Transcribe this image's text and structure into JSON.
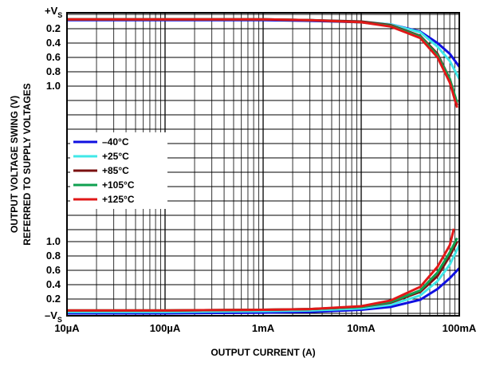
{
  "chart_data": {
    "type": "line",
    "xlabel": "OUTPUT CURRENT (A)",
    "ylabel_line1": "OUTPUT VOLTAGE SWING (V)",
    "ylabel_line2": "REFERRED TO SUPPLY VOLTAGES",
    "x_scale": "log",
    "x_ticks": [
      {
        "value": 1e-05,
        "label": "10µA"
      },
      {
        "value": 0.0001,
        "label": "100µA"
      },
      {
        "value": 0.001,
        "label": "1mA"
      },
      {
        "value": 0.01,
        "label": "10mA"
      },
      {
        "value": 0.1,
        "label": "100mA"
      }
    ],
    "xlim": [
      1e-05,
      0.1
    ],
    "top_axis": {
      "ylim": [
        0,
        1.2
      ],
      "ticks": [
        {
          "value": 0,
          "label": "+V",
          "sub": "S"
        },
        {
          "value": 0.2,
          "label": "0.2"
        },
        {
          "value": 0.4,
          "label": "0.4"
        },
        {
          "value": 0.6,
          "label": "0.6"
        },
        {
          "value": 0.8,
          "label": "0.8"
        },
        {
          "value": 1.0,
          "label": "1.0"
        }
      ]
    },
    "bottom_axis": {
      "ylim": [
        0,
        1.2
      ],
      "ticks": [
        {
          "value": 0,
          "label": "–V",
          "sub": "S"
        },
        {
          "value": 0.2,
          "label": "0.2"
        },
        {
          "value": 0.4,
          "label": "0.4"
        },
        {
          "value": 0.6,
          "label": "0.6"
        },
        {
          "value": 0.8,
          "label": "0.8"
        },
        {
          "value": 1.0,
          "label": "1.0"
        }
      ]
    },
    "grid": true,
    "legend_position": "middle-left",
    "series": [
      {
        "name": "–40°C",
        "color": "#1010e0",
        "top_x": [
          1e-05,
          0.0001,
          0.001,
          0.003,
          0.01,
          0.02,
          0.04,
          0.06,
          0.08,
          0.1
        ],
        "top_y": [
          0.08,
          0.08,
          0.08,
          0.09,
          0.11,
          0.14,
          0.24,
          0.4,
          0.55,
          0.73
        ],
        "bottom_x": [
          1e-05,
          0.0001,
          0.001,
          0.003,
          0.01,
          0.02,
          0.04,
          0.06,
          0.08,
          0.1
        ],
        "bottom_y": [
          0.0,
          0.0,
          0.01,
          0.02,
          0.05,
          0.09,
          0.19,
          0.34,
          0.49,
          0.63
        ]
      },
      {
        "name": "+25°C",
        "color": "#40e8e8",
        "top_x": [
          1e-05,
          0.0001,
          0.001,
          0.003,
          0.01,
          0.02,
          0.04,
          0.06,
          0.08,
          0.1
        ],
        "top_y": [
          0.07,
          0.07,
          0.07,
          0.08,
          0.1,
          0.14,
          0.25,
          0.45,
          0.65,
          0.9
        ],
        "bottom_x": [
          1e-05,
          0.0001,
          0.001,
          0.003,
          0.01,
          0.02,
          0.04,
          0.06,
          0.08,
          0.1
        ],
        "bottom_y": [
          0.02,
          0.02,
          0.03,
          0.04,
          0.07,
          0.12,
          0.25,
          0.45,
          0.68,
          0.95
        ]
      },
      {
        "name": "+85°C",
        "color": "#7a1010",
        "top_x": [
          1e-05,
          0.0001,
          0.001,
          0.003,
          0.01,
          0.02,
          0.04,
          0.06,
          0.08,
          0.095
        ],
        "top_y": [
          0.07,
          0.07,
          0.07,
          0.08,
          0.1,
          0.15,
          0.3,
          0.55,
          0.9,
          1.27
        ],
        "bottom_x": [
          1e-05,
          0.0001,
          0.001,
          0.003,
          0.01,
          0.02,
          0.04,
          0.06,
          0.08,
          0.095
        ],
        "bottom_y": [
          0.04,
          0.04,
          0.05,
          0.06,
          0.09,
          0.15,
          0.3,
          0.52,
          0.8,
          1.0
        ]
      },
      {
        "name": "+105°C",
        "color": "#10a050",
        "top_x": [
          1e-05,
          0.0001,
          0.001,
          0.003,
          0.01,
          0.02,
          0.04,
          0.06,
          0.08,
          0.095
        ],
        "top_y": [
          0.07,
          0.07,
          0.07,
          0.08,
          0.11,
          0.16,
          0.31,
          0.57,
          0.9,
          1.23
        ],
        "bottom_x": [
          1e-05,
          0.0001,
          0.001,
          0.003,
          0.01,
          0.02,
          0.04,
          0.06,
          0.08,
          0.095
        ],
        "bottom_y": [
          0.04,
          0.04,
          0.05,
          0.06,
          0.09,
          0.16,
          0.32,
          0.57,
          0.85,
          1.05
        ]
      },
      {
        "name": "+125°C",
        "color": "#e01818",
        "top_x": [
          1e-05,
          0.0001,
          0.001,
          0.003,
          0.01,
          0.02,
          0.04,
          0.06,
          0.08,
          0.095
        ],
        "top_y": [
          0.07,
          0.07,
          0.07,
          0.08,
          0.11,
          0.17,
          0.33,
          0.6,
          0.95,
          1.3
        ],
        "bottom_x": [
          1e-05,
          0.0001,
          0.001,
          0.003,
          0.01,
          0.02,
          0.04,
          0.06,
          0.08,
          0.088
        ],
        "bottom_y": [
          0.04,
          0.04,
          0.05,
          0.06,
          0.1,
          0.18,
          0.37,
          0.65,
          0.95,
          1.18
        ]
      }
    ]
  }
}
